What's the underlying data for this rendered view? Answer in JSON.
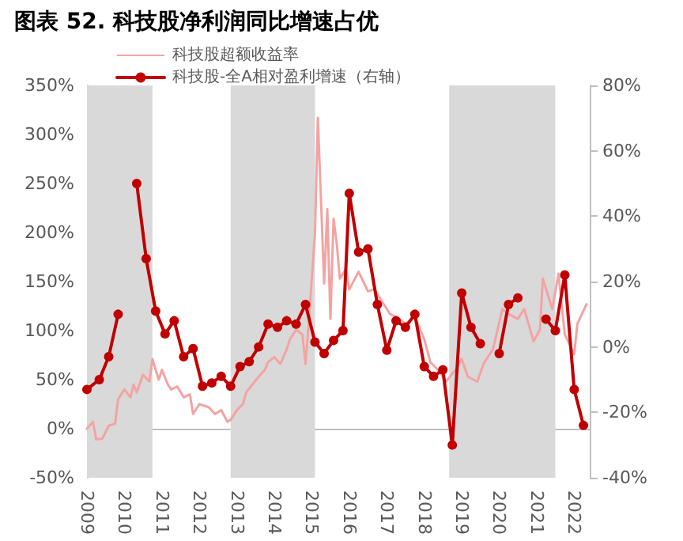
{
  "chart_data": {
    "type": "line",
    "title": "图表 52. 科技股净利润同比增速占优",
    "xlim": [
      "2009-01",
      "2022-06"
    ],
    "xticks": [
      "2009",
      "2010",
      "2011",
      "2012",
      "2013",
      "2014",
      "2015",
      "2016",
      "2017",
      "2018",
      "2019",
      "2020",
      "2021",
      "2022"
    ],
    "ylim": [
      -50,
      350
    ],
    "yticks": [
      {
        "value": -50,
        "label": "-50%"
      },
      {
        "value": 0,
        "label": "0%"
      },
      {
        "value": 50,
        "label": "50%"
      },
      {
        "value": 100,
        "label": "100%"
      },
      {
        "value": 150,
        "label": "150%"
      },
      {
        "value": 200,
        "label": "200%"
      },
      {
        "value": 250,
        "label": "250%"
      },
      {
        "value": 300,
        "label": "300%"
      },
      {
        "value": 350,
        "label": "350%"
      }
    ],
    "y2lim": [
      -40,
      80
    ],
    "y2ticks": [
      {
        "value": -40,
        "label": "-40%"
      },
      {
        "value": -20,
        "label": "-20%"
      },
      {
        "value": 0,
        "label": "0%"
      },
      {
        "value": 20,
        "label": "20%"
      },
      {
        "value": 40,
        "label": "40%"
      },
      {
        "value": 60,
        "label": "60%"
      },
      {
        "value": 80,
        "label": "80%"
      }
    ],
    "legend": "top left",
    "bands": [
      {
        "axis": "x",
        "from": "2009-01",
        "to": "2010-10",
        "color": "#d9d9d9"
      },
      {
        "axis": "x",
        "from": "2012-11",
        "to": "2015-02",
        "color": "#d9d9d9"
      },
      {
        "axis": "x",
        "from": "2018-09",
        "to": "2021-07",
        "color": "#d9d9d9"
      }
    ],
    "series": [
      {
        "name": "科技股超额收益率",
        "color": "#f4a3a3",
        "marker": "none",
        "x": [
          "2009-01",
          "2009-03",
          "2009-04",
          "2009-06",
          "2009-08",
          "2009-10",
          "2009-11",
          "2010-01",
          "2010-03",
          "2010-04",
          "2010-05",
          "2010-07",
          "2010-09",
          "2010-10",
          "2010-12",
          "2011-01",
          "2011-03",
          "2011-04",
          "2011-06",
          "2011-08",
          "2011-10",
          "2011-11",
          "2012-01",
          "2012-04",
          "2012-06",
          "2012-08",
          "2012-10",
          "2012-11",
          "2013-01",
          "2013-03",
          "2013-04",
          "2013-06",
          "2013-08",
          "2013-10",
          "2013-11",
          "2014-01",
          "2014-03",
          "2014-05",
          "2014-06",
          "2014-08",
          "2014-10",
          "2014-11",
          "2014-12",
          "2015-01",
          "2015-02",
          "2015-03",
          "2015-05",
          "2015-06",
          "2015-07",
          "2015-08",
          "2015-09",
          "2015-10",
          "2015-12",
          "2016-01",
          "2016-04",
          "2016-07",
          "2016-09",
          "2016-12",
          "2017-02",
          "2017-05",
          "2017-07",
          "2017-10",
          "2018-01",
          "2018-03",
          "2018-06",
          "2018-08",
          "2018-11",
          "2019-01",
          "2019-03",
          "2019-06",
          "2019-08",
          "2019-11",
          "2020-02",
          "2020-04",
          "2020-07",
          "2020-09",
          "2020-12",
          "2021-02",
          "2021-03",
          "2021-06",
          "2021-08",
          "2021-10",
          "2022-01",
          "2022-02",
          "2022-05"
        ],
        "values": [
          0,
          7,
          -11,
          -10,
          3,
          5,
          30,
          40,
          32,
          45,
          37,
          55,
          48,
          71,
          50,
          60,
          45,
          40,
          43,
          32,
          35,
          15,
          25,
          22,
          15,
          19,
          7,
          9,
          19,
          25,
          37,
          45,
          53,
          60,
          68,
          73,
          66,
          81,
          91,
          101,
          96,
          66,
          107,
          153,
          199,
          317,
          148,
          224,
          112,
          214,
          189,
          153,
          163,
          142,
          160,
          140,
          142,
          127,
          117,
          112,
          107,
          114,
          91,
          68,
          58,
          48,
          60,
          71,
          53,
          48,
          66,
          81,
          122,
          117,
          112,
          122,
          89,
          101,
          153,
          122,
          158,
          96,
          76,
          107,
          127
        ]
      },
      {
        "name": "科技股-全A相对盈利增速（右轴）",
        "color": "#c00000",
        "marker": "circle",
        "axis": "y2",
        "x": [
          "2009-01",
          "2009-05",
          "2009-08",
          "2009-11",
          "2010-02",
          "2010-05",
          "2010-08",
          "2010-11",
          "2011-02",
          "2011-05",
          "2011-08",
          "2011-11",
          "2012-02",
          "2012-05",
          "2012-08",
          "2012-11",
          "2013-02",
          "2013-05",
          "2013-08",
          "2013-11",
          "2014-02",
          "2014-05",
          "2014-08",
          "2014-11",
          "2015-02",
          "2015-05",
          "2015-08",
          "2015-11",
          "2016-01",
          "2016-04",
          "2016-07",
          "2016-10",
          "2017-01",
          "2017-04",
          "2017-07",
          "2017-10",
          "2018-01",
          "2018-04",
          "2018-07",
          "2018-10",
          "2019-01",
          "2019-04",
          "2019-07",
          "2019-10",
          "2020-01",
          "2020-04",
          "2020-07",
          "2020-10",
          "2021-01",
          "2021-04",
          "2021-07",
          "2021-10",
          "2022-01",
          "2022-04"
        ],
        "values": [
          -13,
          -10,
          -3,
          10,
          null,
          50,
          27,
          11,
          4,
          8,
          -3,
          -0.5,
          -12,
          -11,
          -9,
          -12,
          -6,
          -4.5,
          0,
          7,
          6,
          8,
          7,
          13,
          1.5,
          -2,
          2,
          5,
          47,
          29,
          30,
          13,
          -1,
          8,
          6,
          10,
          -6,
          -9,
          -7,
          -30,
          16.5,
          6,
          1,
          null,
          -2,
          13,
          15,
          null,
          null,
          8.5,
          5,
          22,
          -13,
          -24
        ]
      }
    ]
  }
}
